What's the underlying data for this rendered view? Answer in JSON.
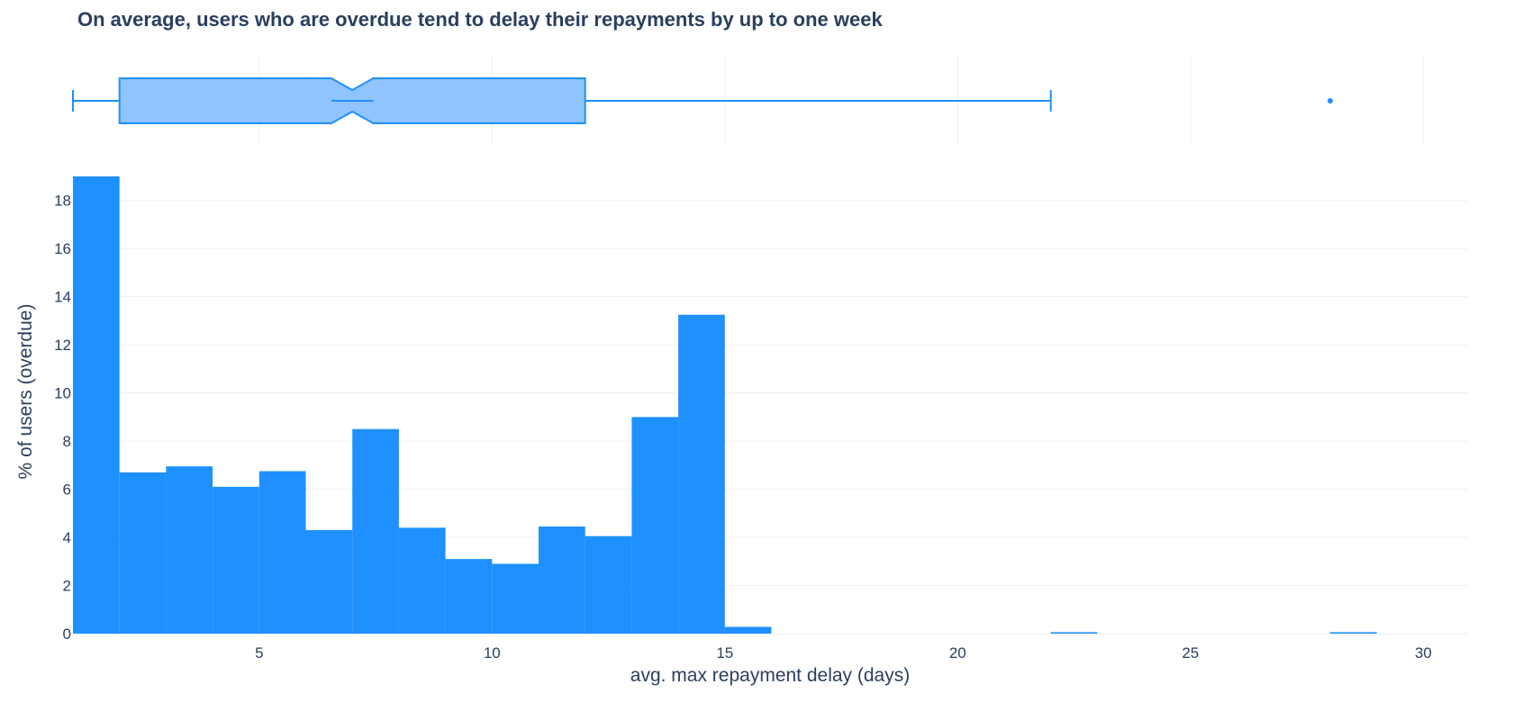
{
  "chart_data": {
    "type": "bar",
    "title": "On average, users who are overdue tend to delay their repayments by up to one week",
    "xlabel": "avg. max repayment delay (days)",
    "ylabel": "% of users (overdue)",
    "xlim": [
      1,
      31
    ],
    "ylim": [
      0,
      19
    ],
    "x_ticks": [
      5,
      10,
      15,
      20,
      25,
      30
    ],
    "y_ticks": [
      0,
      2,
      4,
      6,
      8,
      10,
      12,
      14,
      16,
      18
    ],
    "bin_width": 1,
    "color": "#1e90ff",
    "grid": true,
    "bins": [
      {
        "start": 1,
        "value": 19.0
      },
      {
        "start": 2,
        "value": 6.7
      },
      {
        "start": 3,
        "value": 6.95
      },
      {
        "start": 4,
        "value": 6.1
      },
      {
        "start": 5,
        "value": 6.75
      },
      {
        "start": 6,
        "value": 4.3
      },
      {
        "start": 7,
        "value": 8.5
      },
      {
        "start": 8,
        "value": 4.4
      },
      {
        "start": 9,
        "value": 3.1
      },
      {
        "start": 10,
        "value": 2.9
      },
      {
        "start": 11,
        "value": 4.45
      },
      {
        "start": 12,
        "value": 4.05
      },
      {
        "start": 13,
        "value": 9.0
      },
      {
        "start": 14,
        "value": 13.25
      },
      {
        "start": 15,
        "value": 0.28
      },
      {
        "start": 22,
        "value": 0.06
      },
      {
        "start": 28,
        "value": 0.06
      }
    ],
    "boxplot": {
      "min": 1,
      "q1": 2,
      "median": 7,
      "q3": 12,
      "upper_fence": 22,
      "notch_low": 6.55,
      "notch_high": 7.45,
      "outliers": [
        28
      ],
      "fill_color": "#8fc4fe",
      "line_color": "#1e90ff"
    }
  }
}
